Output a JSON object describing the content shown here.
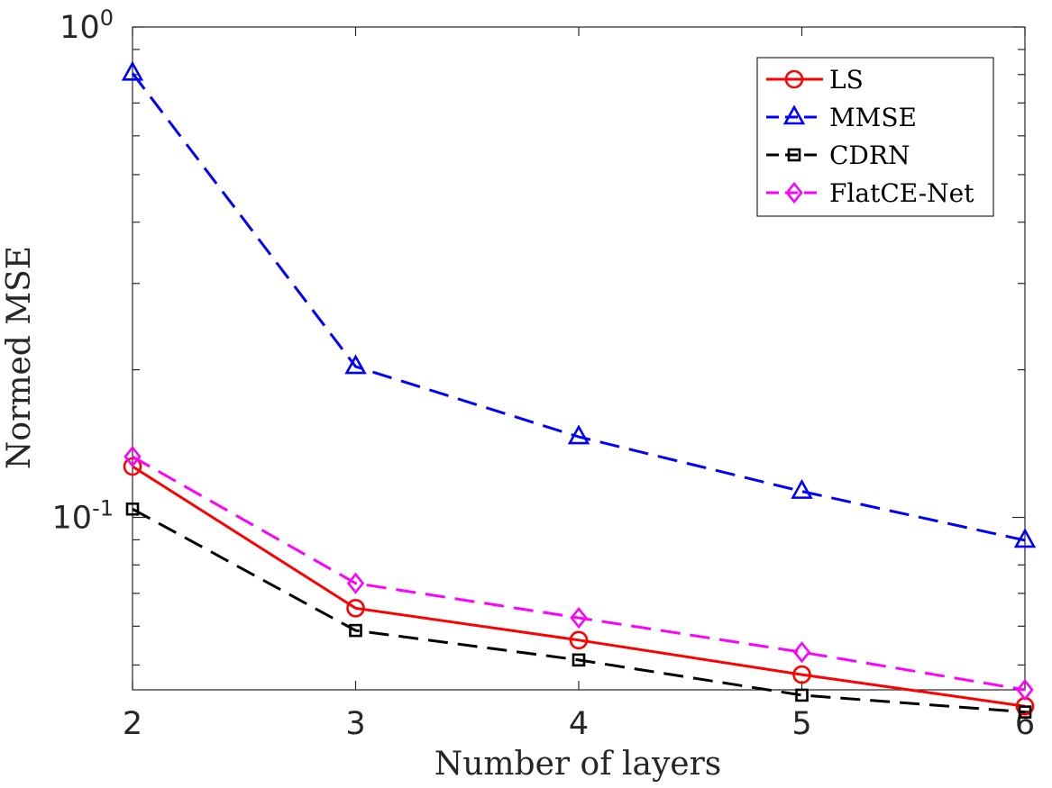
{
  "chart_data": {
    "type": "line",
    "title": "",
    "xlabel": "Number of layers",
    "ylabel": "Normed MSE",
    "x": [
      2,
      3,
      4,
      5,
      6
    ],
    "xlim": [
      2,
      6
    ],
    "ylim": [
      0.0445,
      1.0
    ],
    "yscale": "log",
    "xticks": [
      "2",
      "3",
      "4",
      "5",
      "6"
    ],
    "yticks": [
      {
        "base": "10",
        "exp": "0",
        "value": 1.0
      },
      {
        "base": "10",
        "exp": "-1",
        "value": 0.1
      }
    ],
    "grid": false,
    "legend_position": "top-right",
    "series": [
      {
        "name": "LS",
        "values": [
          0.127,
          0.0653,
          0.0562,
          0.0478,
          0.0412
        ],
        "color": "#ff0000",
        "marker": "circle",
        "dash": "solid"
      },
      {
        "name": "MMSE",
        "values": [
          0.805,
          0.203,
          0.146,
          0.113,
          0.0898
        ],
        "color": "#0000ff",
        "marker": "triangle",
        "dash": "dashed"
      },
      {
        "name": "CDRN",
        "values": [
          0.104,
          0.0588,
          0.0512,
          0.0434,
          0.0401
        ],
        "color": "#000000",
        "marker": "square",
        "dash": "dashed"
      },
      {
        "name": "FlatCE-Net",
        "values": [
          0.133,
          0.0734,
          0.0624,
          0.0531,
          0.0445
        ],
        "color": "#ff00ff",
        "marker": "diamond",
        "dash": "dashed"
      }
    ]
  }
}
